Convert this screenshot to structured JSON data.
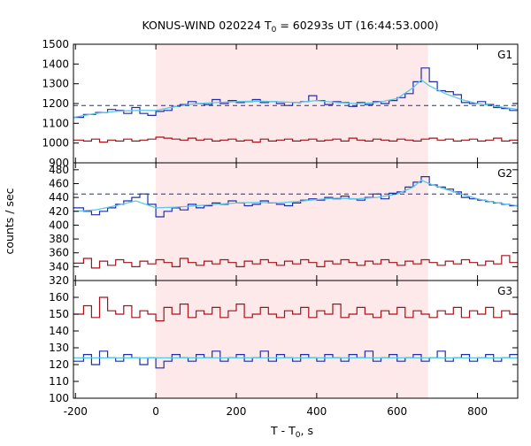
{
  "chart_data": {
    "type": "line",
    "title_main": "KONUS-WIND 020224 T",
    "title_sub": "0",
    "title_rest": " = 60293s UT (16:44:53.000)",
    "xlabel_main": "T - T",
    "xlabel_sub": "0",
    "xlabel_rest": ", s",
    "ylabel": "counts / sec",
    "xlim": [
      -205,
      900
    ],
    "x_ticks": [
      -200,
      0,
      200,
      400,
      600,
      800
    ],
    "x_tick_labels": [
      "-200",
      "0",
      "200",
      "400",
      "600",
      "800"
    ],
    "shaded_interval": [
      0,
      677
    ],
    "shade_color": "#fde8ea",
    "colors": {
      "blue": "#1f2fa8",
      "cyan": "#5bc8e8",
      "red": "#a5121a"
    },
    "panels": [
      {
        "name": "G1",
        "ylim": [
          900,
          1500
        ],
        "y_ticks": [
          900,
          1000,
          1100,
          1200,
          1300,
          1400,
          1500
        ],
        "y_tick_labels": [
          "900",
          "1000",
          "1100",
          "1200",
          "1300",
          "1400",
          "1500"
        ],
        "background_level": 1190,
        "series": [
          {
            "role": "source-hist",
            "color": "#1f2fa8",
            "x": [
              -205,
              -180,
              -150,
              -120,
              -100,
              -80,
              -60,
              -40,
              -20,
              0,
              20,
              40,
              60,
              80,
              100,
              120,
              140,
              160,
              180,
              200,
              220,
              240,
              260,
              280,
              300,
              320,
              340,
              360,
              380,
              400,
              420,
              440,
              460,
              480,
              500,
              520,
              540,
              560,
              580,
              600,
              620,
              640,
              660,
              680,
              700,
              720,
              740,
              760,
              780,
              800,
              820,
              840,
              860,
              880,
              900
            ],
            "y": [
              1130,
              1145,
              1155,
              1170,
              1165,
              1150,
              1180,
              1150,
              1140,
              1160,
              1165,
              1185,
              1195,
              1210,
              1200,
              1195,
              1220,
              1200,
              1215,
              1205,
              1210,
              1220,
              1205,
              1210,
              1200,
              1190,
              1205,
              1210,
              1240,
              1215,
              1195,
              1210,
              1205,
              1185,
              1205,
              1195,
              1210,
              1200,
              1215,
              1230,
              1250,
              1310,
              1380,
              1310,
              1265,
              1260,
              1245,
              1205,
              1200,
              1210,
              1195,
              1180,
              1175,
              1165,
              1170
            ]
          },
          {
            "role": "source-smooth",
            "color": "#5bc8e8",
            "x": [
              -205,
              -150,
              -100,
              -50,
              0,
              50,
              100,
              150,
              200,
              250,
              300,
              350,
              400,
              450,
              500,
              550,
              600,
              640,
              660,
              680,
              720,
              760,
              800,
              850,
              900
            ],
            "y": [
              1130,
              1150,
              1160,
              1165,
              1165,
              1185,
              1200,
              1205,
              1210,
              1212,
              1210,
              1205,
              1215,
              1205,
              1200,
              1205,
              1225,
              1280,
              1320,
              1290,
              1250,
              1220,
              1200,
              1185,
              1170
            ]
          },
          {
            "role": "background-hist",
            "color": "#a5121a",
            "x": [
              -205,
              -180,
              -160,
              -140,
              -120,
              -100,
              -80,
              -60,
              -40,
              -20,
              0,
              20,
              40,
              60,
              80,
              100,
              120,
              140,
              160,
              180,
              200,
              220,
              240,
              260,
              280,
              300,
              320,
              340,
              360,
              380,
              400,
              420,
              440,
              460,
              480,
              500,
              520,
              540,
              560,
              580,
              600,
              620,
              640,
              660,
              680,
              700,
              720,
              740,
              760,
              780,
              800,
              820,
              840,
              860,
              880,
              900
            ],
            "y": [
              1015,
              1010,
              1020,
              1005,
              1015,
              1010,
              1020,
              1010,
              1015,
              1020,
              1030,
              1025,
              1020,
              1015,
              1025,
              1015,
              1020,
              1010,
              1015,
              1020,
              1010,
              1015,
              1005,
              1020,
              1010,
              1015,
              1020,
              1010,
              1015,
              1020,
              1010,
              1015,
              1020,
              1010,
              1025,
              1015,
              1010,
              1020,
              1015,
              1010,
              1020,
              1015,
              1010,
              1020,
              1025,
              1015,
              1020,
              1010,
              1015,
              1020,
              1010,
              1015,
              1025,
              1010,
              1015,
              1020
            ]
          }
        ]
      },
      {
        "name": "G2",
        "ylim": [
          320,
          490
        ],
        "y_ticks": [
          320,
          340,
          360,
          380,
          400,
          420,
          440,
          460,
          480
        ],
        "y_tick_labels": [
          "320",
          "340",
          "360",
          "380",
          "400",
          "420",
          "440",
          "460",
          "480"
        ],
        "background_level": 445,
        "series": [
          {
            "role": "source-hist",
            "color": "#1f2fa8",
            "x": [
              -205,
              -180,
              -160,
              -140,
              -120,
              -100,
              -80,
              -60,
              -40,
              -20,
              0,
              20,
              40,
              60,
              80,
              100,
              120,
              140,
              160,
              180,
              200,
              220,
              240,
              260,
              280,
              300,
              320,
              340,
              360,
              380,
              400,
              420,
              440,
              460,
              480,
              500,
              520,
              540,
              560,
              580,
              600,
              620,
              640,
              660,
              680,
              700,
              720,
              740,
              760,
              780,
              800,
              820,
              840,
              860,
              880,
              900
            ],
            "y": [
              425,
              420,
              415,
              420,
              425,
              430,
              435,
              440,
              445,
              430,
              412,
              420,
              425,
              422,
              430,
              425,
              428,
              432,
              430,
              435,
              432,
              428,
              430,
              435,
              432,
              430,
              428,
              432,
              436,
              438,
              436,
              440,
              438,
              442,
              438,
              436,
              440,
              445,
              438,
              446,
              448,
              455,
              462,
              470,
              458,
              455,
              452,
              448,
              440,
              438,
              436,
              434,
              432,
              430,
              428,
              426
            ]
          },
          {
            "role": "source-smooth",
            "color": "#5bc8e8",
            "x": [
              -205,
              -150,
              -100,
              -50,
              0,
              50,
              100,
              150,
              200,
              250,
              300,
              350,
              400,
              450,
              500,
              550,
              600,
              640,
              660,
              680,
              720,
              760,
              800,
              850,
              900
            ],
            "y": [
              420,
              422,
              428,
              435,
              425,
              426,
              428,
              430,
              432,
              433,
              432,
              434,
              437,
              439,
              438,
              440,
              445,
              455,
              465,
              460,
              452,
              445,
              438,
              432,
              428
            ]
          },
          {
            "role": "background-hist",
            "color": "#a5121a",
            "x": [
              -205,
              -180,
              -160,
              -140,
              -120,
              -100,
              -80,
              -60,
              -40,
              -20,
              0,
              20,
              40,
              60,
              80,
              100,
              120,
              140,
              160,
              180,
              200,
              220,
              240,
              260,
              280,
              300,
              320,
              340,
              360,
              380,
              400,
              420,
              440,
              460,
              480,
              500,
              520,
              540,
              560,
              580,
              600,
              620,
              640,
              660,
              680,
              700,
              720,
              740,
              760,
              780,
              800,
              820,
              840,
              860,
              880,
              900
            ],
            "y": [
              345,
              352,
              338,
              348,
              342,
              350,
              346,
              340,
              348,
              344,
              350,
              346,
              340,
              352,
              346,
              342,
              348,
              344,
              350,
              346,
              340,
              348,
              344,
              350,
              346,
              342,
              348,
              344,
              350,
              346,
              340,
              348,
              344,
              350,
              346,
              342,
              348,
              344,
              350,
              346,
              342,
              348,
              344,
              350,
              346,
              342,
              348,
              344,
              350,
              346,
              342,
              348,
              344,
              356,
              346,
              342
            ]
          }
        ]
      },
      {
        "name": "G3",
        "ylim": [
          100,
          170
        ],
        "y_ticks": [
          100,
          110,
          120,
          130,
          140,
          150,
          160
        ],
        "y_tick_labels": [
          "100",
          "110",
          "120",
          "130",
          "140",
          "150",
          "160"
        ],
        "background_level": null,
        "series": [
          {
            "role": "source-hist",
            "color": "#1f2fa8",
            "x": [
              -205,
              -180,
              -160,
              -140,
              -120,
              -100,
              -80,
              -60,
              -40,
              -20,
              0,
              20,
              40,
              60,
              80,
              100,
              120,
              140,
              160,
              180,
              200,
              220,
              240,
              260,
              280,
              300,
              320,
              340,
              360,
              380,
              400,
              420,
              440,
              460,
              480,
              500,
              520,
              540,
              560,
              580,
              600,
              620,
              640,
              660,
              680,
              700,
              720,
              740,
              760,
              780,
              800,
              820,
              840,
              860,
              880,
              900
            ],
            "y": [
              122,
              126,
              120,
              128,
              124,
              122,
              126,
              124,
              120,
              124,
              118,
              122,
              126,
              124,
              122,
              126,
              124,
              128,
              122,
              124,
              126,
              122,
              124,
              128,
              122,
              126,
              124,
              122,
              126,
              124,
              122,
              126,
              124,
              122,
              126,
              124,
              128,
              122,
              124,
              126,
              122,
              124,
              126,
              122,
              124,
              128,
              122,
              124,
              126,
              122,
              124,
              126,
              122,
              124,
              126,
              122
            ]
          },
          {
            "role": "source-smooth",
            "color": "#5bc8e8",
            "x": [
              -205,
              0,
              200,
              400,
              600,
              800,
              900
            ],
            "y": [
              124,
              124,
              124,
              124,
              124,
              124,
              124
            ]
          },
          {
            "role": "background-hist",
            "color": "#a5121a",
            "x": [
              -205,
              -180,
              -160,
              -140,
              -120,
              -100,
              -80,
              -60,
              -40,
              -20,
              0,
              20,
              40,
              60,
              80,
              100,
              120,
              140,
              160,
              180,
              200,
              220,
              240,
              260,
              280,
              300,
              320,
              340,
              360,
              380,
              400,
              420,
              440,
              460,
              480,
              500,
              520,
              540,
              560,
              580,
              600,
              620,
              640,
              660,
              680,
              700,
              720,
              740,
              760,
              780,
              800,
              820,
              840,
              860,
              880,
              900
            ],
            "y": [
              150,
              155,
              148,
              160,
              152,
              150,
              155,
              148,
              152,
              150,
              146,
              154,
              150,
              156,
              148,
              152,
              150,
              154,
              148,
              152,
              156,
              148,
              150,
              154,
              150,
              148,
              152,
              150,
              154,
              148,
              152,
              150,
              156,
              148,
              150,
              154,
              150,
              148,
              152,
              150,
              154,
              148,
              152,
              150,
              148,
              152,
              150,
              154,
              148,
              152,
              150,
              154,
              148,
              152,
              150,
              148
            ]
          }
        ]
      }
    ]
  }
}
